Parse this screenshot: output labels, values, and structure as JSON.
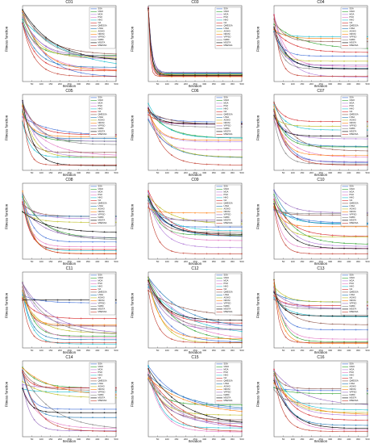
{
  "chart_data": {
    "type": "line",
    "scale": "log-y",
    "x_ticks": [
      50,
      100,
      150,
      200,
      250,
      300,
      350,
      400,
      450,
      500
    ],
    "xlabel": "Iteration",
    "ylabel": "Fitness function",
    "legend_position": "top-right",
    "legend": [
      "SSA",
      "GWO",
      "MOA",
      "PSO",
      "HHO",
      "OA",
      "QMESSA",
      "LSSA",
      "AGWO",
      "ORCM",
      "VPPSO",
      "NABC",
      "MSSTA",
      "MSESSA"
    ],
    "colors": [
      "#3b6bd6",
      "#2ca02c",
      "#b07ad8",
      "#e377c2",
      "#17becf",
      "#d62728",
      "#8c564b",
      "#1f77b4",
      "#bcbd22",
      "#ff7f0e",
      "#9467bd",
      "#7f7f7f",
      "#000000",
      "#c0392b"
    ],
    "panels": [
      {
        "title": "C01",
        "mode": "steep"
      },
      {
        "title": "C03",
        "mode": "drop"
      },
      {
        "title": "C04",
        "mode": "spread"
      },
      {
        "title": "C05",
        "mode": "spread"
      },
      {
        "title": "C06",
        "mode": "flat"
      },
      {
        "title": "C07",
        "mode": "spread"
      },
      {
        "title": "C08",
        "mode": "spread"
      },
      {
        "title": "C09",
        "mode": "flat"
      },
      {
        "title": "C10",
        "mode": "spread"
      },
      {
        "title": "C11",
        "mode": "spread"
      },
      {
        "title": "C12",
        "mode": "steep"
      },
      {
        "title": "C13",
        "mode": "spread"
      },
      {
        "title": "C14",
        "mode": "spread"
      },
      {
        "title": "C15",
        "mode": "steep"
      },
      {
        "title": "C16",
        "mode": "spread"
      }
    ]
  }
}
